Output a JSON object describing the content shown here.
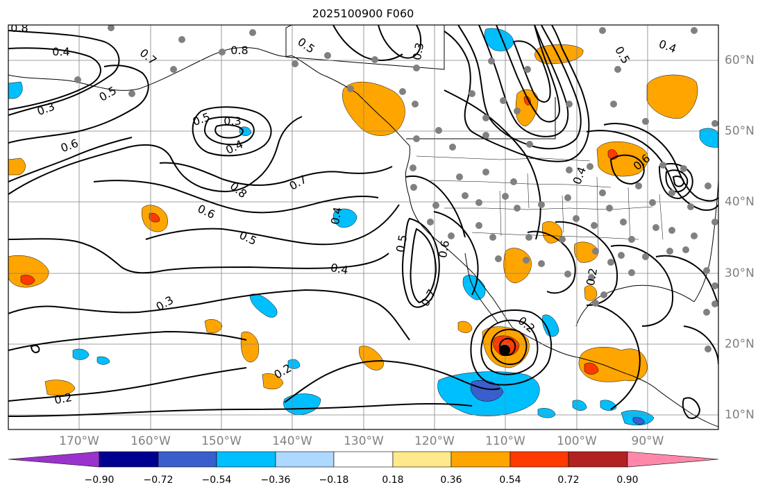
{
  "title": "2025100900 F060",
  "colors": {
    "land_outline": "#000000",
    "contour": "#000000",
    "grid": "#808080",
    "station_dot": "#808080",
    "storm_center": "#000000"
  },
  "map": {
    "lon_labels": [
      "170°W",
      "160°W",
      "150°W",
      "140°W",
      "130°W",
      "120°W",
      "110°W",
      "100°W",
      "90°W"
    ],
    "lat_labels": [
      "60°N",
      "50°N",
      "40°N",
      "30°N",
      "20°N",
      "10°N"
    ],
    "contour_labels": [
      {
        "text": "0.8"
      },
      {
        "text": "0.4"
      },
      {
        "text": "0.7"
      },
      {
        "text": "0.5"
      },
      {
        "text": "0.3"
      },
      {
        "text": "0.6"
      },
      {
        "text": "0.3"
      },
      {
        "text": "0.4"
      },
      {
        "text": "0.5"
      },
      {
        "text": "0.7"
      },
      {
        "text": "0.8"
      },
      {
        "text": "0.6"
      },
      {
        "text": "0.5"
      },
      {
        "text": "0.4"
      },
      {
        "text": "0.3"
      },
      {
        "text": "0.2"
      },
      {
        "text": "0.2"
      },
      {
        "text": "0.8"
      },
      {
        "text": "0.5"
      },
      {
        "text": "0.3"
      },
      {
        "text": "0.4"
      },
      {
        "text": "0.5"
      },
      {
        "text": "0.6"
      },
      {
        "text": "0.7"
      },
      {
        "text": "0.2"
      },
      {
        "text": "0.4"
      },
      {
        "text": "0.2"
      },
      {
        "text": "0.6"
      },
      {
        "text": "0.5"
      },
      {
        "text": "0.4"
      }
    ]
  },
  "colorbar": {
    "colors": [
      "#9933cc",
      "#000090",
      "#3a5fcd",
      "#00bfff",
      "#add8ff",
      "#ffffff",
      "#ffe98a",
      "#ffa500",
      "#ff3a00",
      "#b22222",
      "#ff88aa"
    ],
    "tick_labels": [
      "−0.90",
      "−0.72",
      "−0.54",
      "−0.36",
      "−0.18",
      "0.18",
      "0.36",
      "0.54",
      "0.72",
      "0.90"
    ]
  }
}
